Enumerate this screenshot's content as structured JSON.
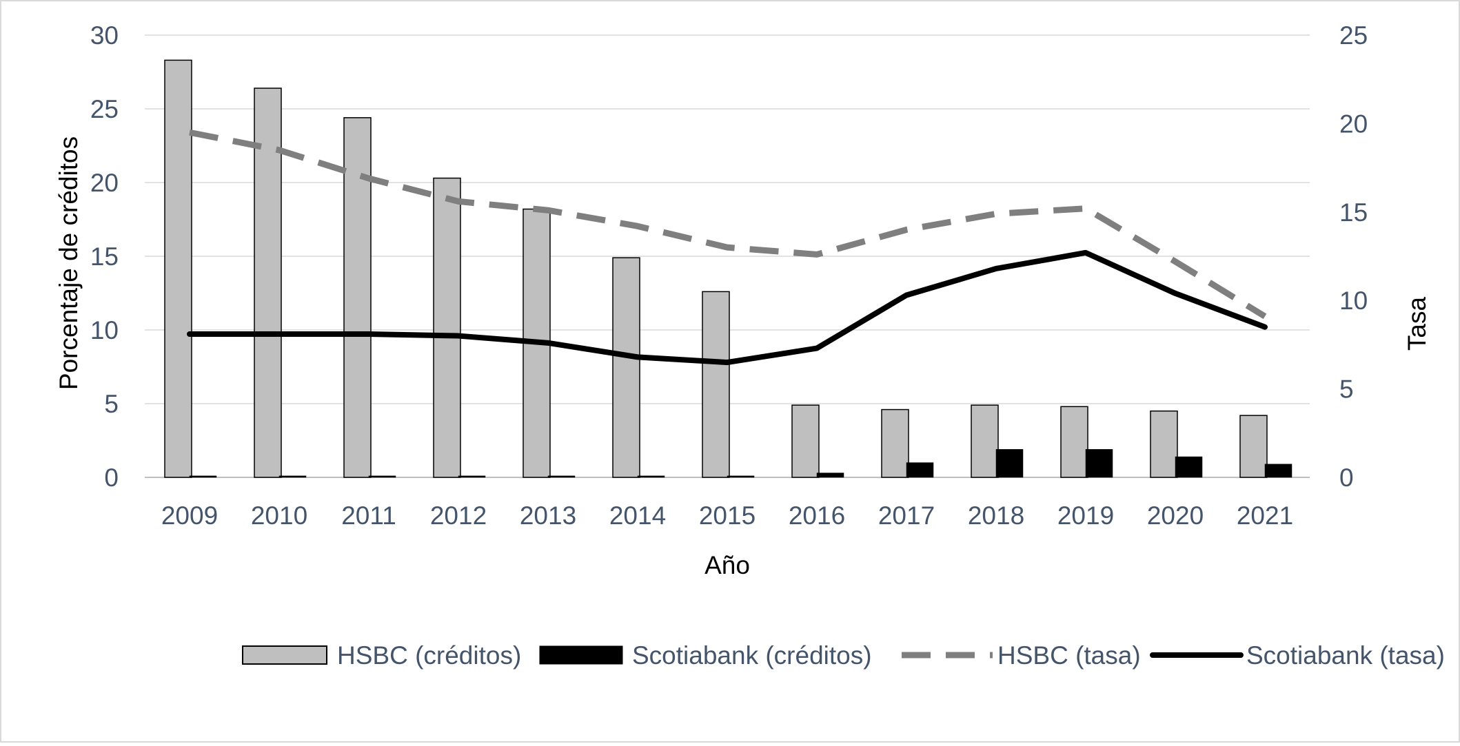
{
  "chart_data": {
    "type": "bar",
    "categories": [
      "2009",
      "2010",
      "2011",
      "2012",
      "2013",
      "2014",
      "2015",
      "2016",
      "2017",
      "2018",
      "2019",
      "2020",
      "2021"
    ],
    "xlabel": "Año",
    "ylabel_left": "Porcentaje  de créditos",
    "ylabel_right": "Tasa",
    "ylim_left": [
      0,
      30
    ],
    "ylim_right": [
      0,
      25
    ],
    "yticks_left": [
      "0",
      "5",
      "10",
      "15",
      "20",
      "25",
      "30"
    ],
    "yticks_right": [
      "0",
      "5",
      "10",
      "15",
      "20",
      "25"
    ],
    "grid": true,
    "legend_position": "bottom",
    "series": [
      {
        "name": "HSBC (créditos)",
        "kind": "bar",
        "axis": "left",
        "color": "#bfbfbf",
        "values": [
          28.3,
          26.4,
          24.4,
          20.3,
          18.2,
          14.9,
          12.6,
          4.9,
          4.6,
          4.9,
          4.8,
          4.5,
          4.2
        ]
      },
      {
        "name": "Scotiabank (créditos)",
        "kind": "bar",
        "axis": "left",
        "color": "#000000",
        "values": [
          0.1,
          0.1,
          0.1,
          0.1,
          0.1,
          0.1,
          0.1,
          0.3,
          1.0,
          1.9,
          1.9,
          1.4,
          0.9
        ]
      },
      {
        "name": "HSBC (tasa)",
        "kind": "line",
        "style": "dashed",
        "axis": "right",
        "color": "#7f7f7f",
        "values": [
          19.5,
          18.5,
          16.9,
          15.6,
          15.1,
          14.2,
          13.0,
          12.6,
          14.0,
          14.9,
          15.2,
          12.2,
          9.1
        ]
      },
      {
        "name": "Scotiabank (tasa)",
        "kind": "line",
        "style": "solid",
        "axis": "right",
        "color": "#000000",
        "values": [
          8.1,
          8.1,
          8.1,
          8.0,
          7.6,
          6.8,
          6.5,
          7.3,
          10.3,
          11.8,
          12.7,
          10.4,
          8.5
        ]
      }
    ]
  }
}
